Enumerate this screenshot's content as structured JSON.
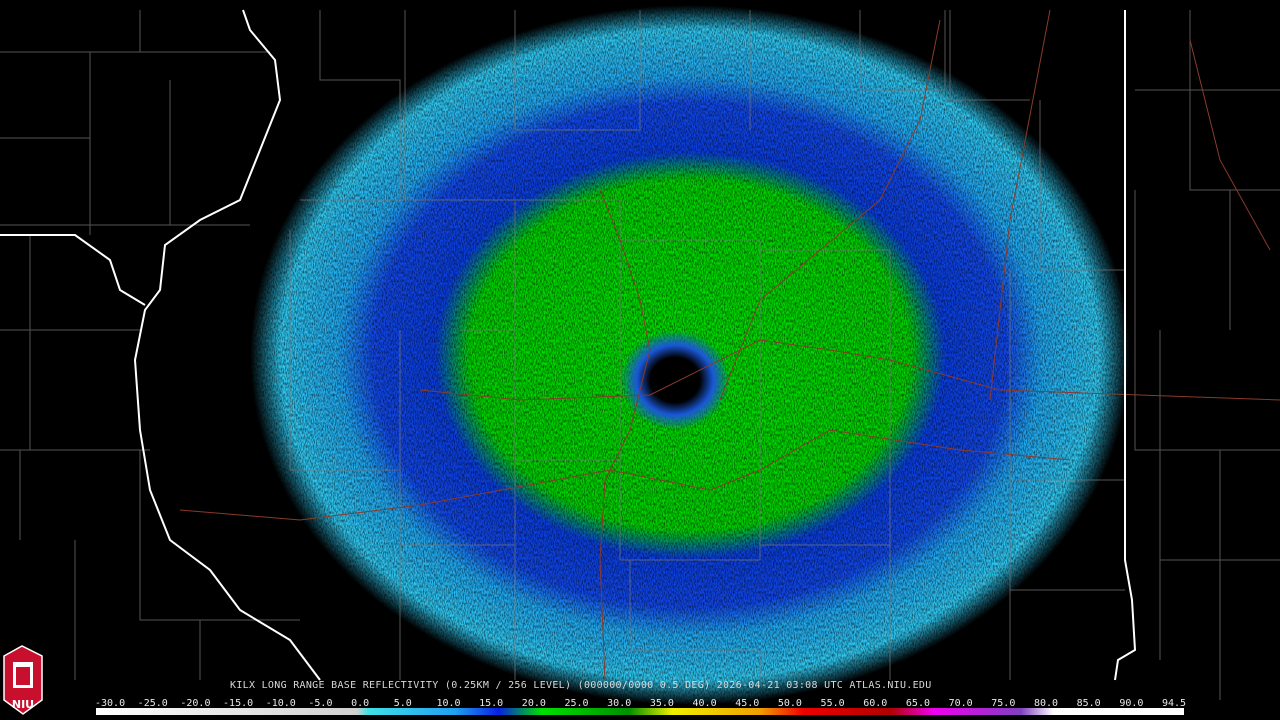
{
  "caption": "KILX LONG RANGE BASE REFLECTIVITY (0.25KM / 256 LEVEL) (000000/0000 0.5 DEG) 2026-04-21 03:08 UTC  ATLAS.NIU.EDU",
  "logo": "NIU",
  "colorbar": {
    "labels": [
      "-30.0",
      "-25.0",
      "-20.0",
      "-15.0",
      "-10.0",
      "-5.0",
      "0.0",
      "5.0",
      "10.0",
      "15.0",
      "20.0",
      "25.0",
      "30.0",
      "35.0",
      "40.0",
      "45.0",
      "50.0",
      "55.0",
      "60.0",
      "65.0",
      "70.0",
      "75.0",
      "80.0",
      "85.0",
      "90.0",
      "94.5"
    ]
  }
}
